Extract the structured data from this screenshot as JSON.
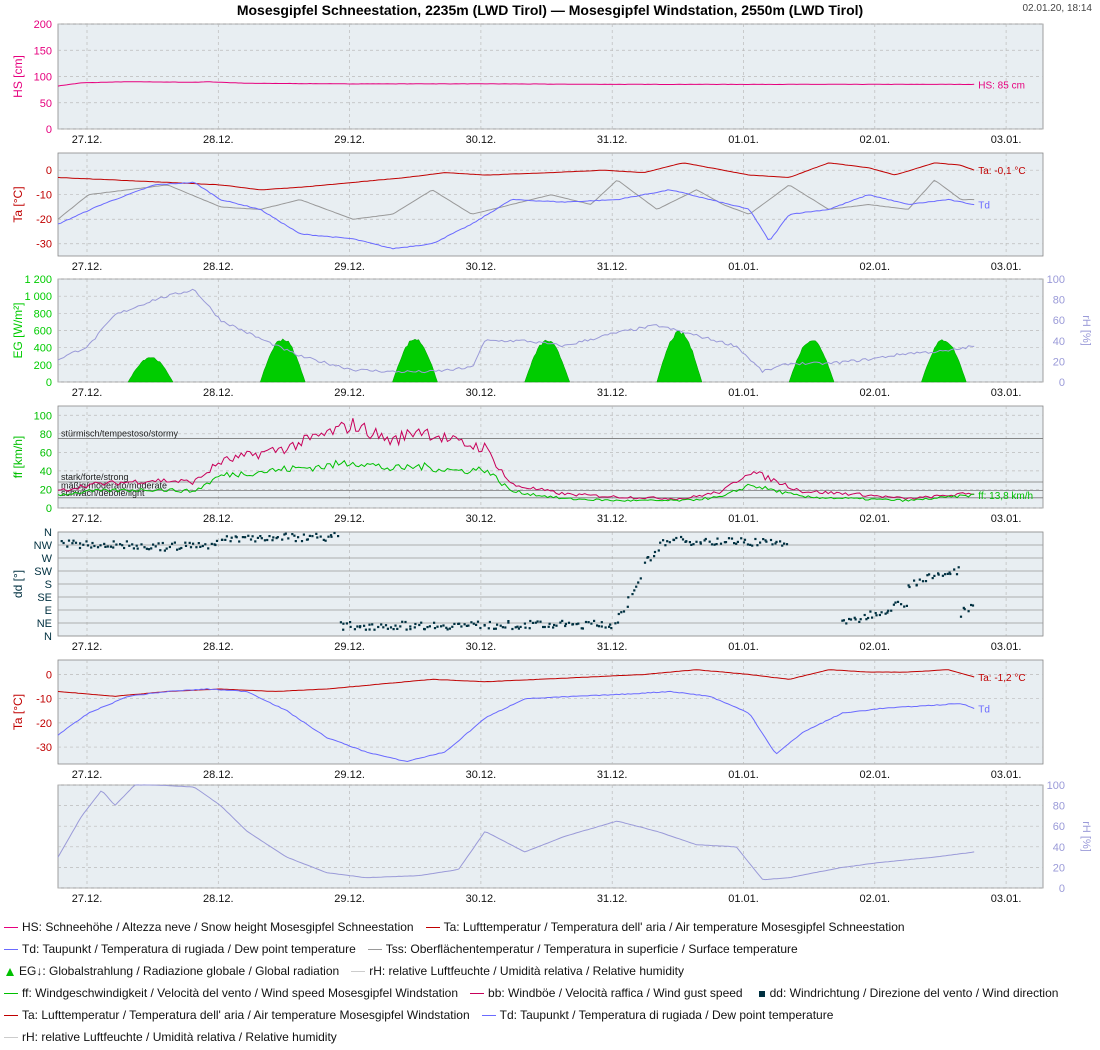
{
  "title": "Mosesgipfel Schneestation, 2235m (LWD Tirol) — Mosesgipfel Windstation, 2550m (LWD Tirol)",
  "timestamp": "02.01.20, 18:14",
  "colors": {
    "hs": "#e6007e",
    "ta": "#c00000",
    "td": "#6a6aff",
    "tss": "#999999",
    "eg": "#00cc00",
    "rh": "#9a9ad8",
    "ff": "#00c000",
    "bb": "#c8005a",
    "dd": "#003040",
    "panel_bg": "#e8eef2",
    "grid": "#bbbbbb"
  },
  "chart_data": [
    {
      "panel": "snow-height",
      "type": "line",
      "ylabel": "HS [cm]",
      "ylim": [
        0,
        200
      ],
      "yticks": [
        0,
        50,
        100,
        150,
        200
      ],
      "x_ticks": [
        "27.12.",
        "28.12.",
        "29.12.",
        "30.12.",
        "31.12.",
        "01.01.",
        "02.01.",
        "03.01."
      ],
      "xlim": [
        -0.23,
        7.22
      ],
      "series": [
        {
          "key": "hs",
          "end_label": "HS: 85 cm",
          "x": [
            -0.23,
            -0.05,
            0.3,
            0.8,
            0.9,
            1.2,
            2.0,
            3.0,
            4.0,
            5.0,
            6.0,
            6.7
          ],
          "y": [
            82,
            88,
            90,
            89,
            90,
            87,
            86,
            86,
            85,
            85,
            85,
            85
          ]
        }
      ]
    },
    {
      "panel": "snow-station-temperatures",
      "type": "line",
      "ylabel": "Ta [°C]",
      "ylim": [
        -35,
        7
      ],
      "yticks": [
        -30,
        -20,
        -10,
        0
      ],
      "x_ticks": [
        "27.12.",
        "28.12.",
        "29.12.",
        "30.12.",
        "31.12.",
        "01.01.",
        "02.01.",
        "03.01."
      ],
      "xlim": [
        -0.23,
        7.22
      ],
      "series": [
        {
          "key": "ta",
          "end_label": "Ta: -0,1 °C",
          "x": [
            -0.23,
            0.2,
            0.6,
            1.0,
            1.3,
            1.6,
            2.0,
            2.4,
            2.7,
            3.0,
            3.5,
            3.9,
            4.2,
            4.5,
            4.7,
            5.0,
            5.3,
            5.6,
            5.9,
            6.1,
            6.4,
            6.6,
            6.7
          ],
          "y": [
            -3,
            -4,
            -5,
            -6,
            -8,
            -7,
            -5,
            -3,
            -1,
            -2,
            -1,
            0,
            -1,
            3,
            1,
            -2,
            -3,
            3,
            1,
            -2,
            3,
            2,
            0
          ]
        },
        {
          "key": "tss",
          "x": [
            -0.23,
            0.0,
            0.3,
            0.6,
            1.0,
            1.3,
            1.6,
            2.0,
            2.3,
            2.6,
            2.9,
            3.2,
            3.5,
            3.8,
            4.0,
            4.3,
            4.6,
            4.8,
            5.0,
            5.3,
            5.6,
            5.9,
            6.2,
            6.4,
            6.6,
            6.7
          ],
          "y": [
            -20,
            -10,
            -8,
            -6,
            -15,
            -16,
            -12,
            -20,
            -18,
            -8,
            -18,
            -14,
            -10,
            -14,
            -4,
            -16,
            -8,
            -14,
            -18,
            -6,
            -16,
            -14,
            -16,
            -4,
            -12,
            -12
          ]
        },
        {
          "key": "td",
          "end_label": "Td",
          "x": [
            -0.23,
            0.1,
            0.5,
            0.8,
            1.0,
            1.3,
            1.6,
            2.0,
            2.3,
            2.6,
            2.9,
            3.2,
            3.6,
            4.0,
            4.4,
            4.7,
            5.0,
            5.15,
            5.3,
            5.6,
            5.9,
            6.2,
            6.5,
            6.7
          ],
          "y": [
            -22,
            -14,
            -6,
            -5,
            -12,
            -16,
            -26,
            -28,
            -32,
            -30,
            -22,
            -12,
            -13,
            -12,
            -8,
            -12,
            -16,
            -29,
            -18,
            -16,
            -10,
            -14,
            -12,
            -14
          ]
        }
      ]
    },
    {
      "panel": "global-radiation-humidity",
      "type": "area",
      "ylabel": "EG [W/m²]",
      "ylim": [
        0,
        1200
      ],
      "yticks": [
        0,
        200,
        400,
        600,
        800,
        1000,
        1200
      ],
      "ytick_labels": [
        "0",
        "200",
        "400",
        "600",
        "800",
        "1 000",
        "1 200"
      ],
      "y2label": "rH [%]",
      "y2lim": [
        0,
        100
      ],
      "y2ticks": [
        0,
        20,
        40,
        60,
        80,
        100
      ],
      "x_ticks": [
        "27.12.",
        "28.12.",
        "29.12.",
        "30.12.",
        "31.12.",
        "01.01.",
        "02.01.",
        "03.01."
      ],
      "xlim": [
        -0.23,
        7.22
      ],
      "series": [
        {
          "key": "eg",
          "type": "area",
          "axis": "left",
          "peaks": [
            {
              "center": 0.47,
              "width": 0.34,
              "value": 300
            },
            {
              "center": 1.47,
              "width": 0.34,
              "value": 520
            },
            {
              "center": 2.47,
              "width": 0.34,
              "value": 520
            },
            {
              "center": 3.47,
              "width": 0.34,
              "value": 500
            },
            {
              "center": 4.47,
              "width": 0.34,
              "value": 600
            },
            {
              "center": 5.47,
              "width": 0.34,
              "value": 510
            },
            {
              "center": 6.47,
              "width": 0.34,
              "value": 510
            }
          ]
        },
        {
          "key": "rh",
          "type": "line",
          "axis": "right",
          "x": [
            -0.23,
            0.0,
            0.2,
            0.5,
            0.8,
            1.0,
            1.3,
            1.6,
            2.0,
            2.3,
            2.6,
            2.9,
            3.0,
            3.3,
            3.6,
            4.0,
            4.3,
            4.6,
            4.9,
            5.1,
            5.3,
            5.6,
            5.9,
            6.2,
            6.5,
            6.7
          ],
          "y": [
            22,
            35,
            65,
            80,
            90,
            60,
            42,
            25,
            12,
            10,
            10,
            14,
            40,
            40,
            35,
            48,
            55,
            45,
            35,
            10,
            18,
            18,
            22,
            28,
            30,
            35
          ]
        }
      ]
    },
    {
      "panel": "wind-speed",
      "type": "line",
      "ylabel": "ff [km/h]",
      "ylim": [
        0,
        110
      ],
      "yticks": [
        0,
        20,
        40,
        60,
        80,
        100
      ],
      "thresholds": [
        {
          "y": 75,
          "label": "stürmisch/tempestoso/stormy"
        },
        {
          "y": 28,
          "label": "stark/forte/strong"
        },
        {
          "y": 19,
          "label": "mäßig/moderato/moderate"
        },
        {
          "y": 11,
          "label": "schwach/debole/light"
        }
      ],
      "x_ticks": [
        "27.12.",
        "28.12.",
        "29.12.",
        "30.12.",
        "31.12.",
        "01.01.",
        "02.01.",
        "03.01."
      ],
      "xlim": [
        -0.23,
        7.22
      ],
      "series": [
        {
          "key": "bb",
          "x": [
            -0.23,
            0.0,
            0.5,
            0.8,
            1.0,
            1.5,
            1.8,
            2.0,
            2.3,
            2.5,
            2.8,
            3.0,
            3.2,
            3.6,
            4.0,
            4.5,
            4.8,
            5.0,
            5.4,
            5.8,
            6.2,
            6.7
          ],
          "y": [
            18,
            25,
            30,
            28,
            50,
            65,
            80,
            90,
            72,
            85,
            70,
            65,
            25,
            15,
            12,
            10,
            18,
            40,
            18,
            15,
            10,
            16
          ]
        },
        {
          "key": "ff",
          "end_label": "ff: 13,8 km/h",
          "x": [
            -0.23,
            0.0,
            0.5,
            0.8,
            1.0,
            1.5,
            1.8,
            2.0,
            2.3,
            2.5,
            2.8,
            3.0,
            3.2,
            3.6,
            4.0,
            4.5,
            4.8,
            5.0,
            5.4,
            5.8,
            6.2,
            6.7
          ],
          "y": [
            14,
            18,
            20,
            18,
            35,
            42,
            45,
            50,
            42,
            45,
            40,
            42,
            18,
            10,
            8,
            8,
            12,
            25,
            12,
            10,
            8,
            14
          ]
        }
      ]
    },
    {
      "panel": "wind-direction",
      "type": "scatter",
      "ylabel": "dd [°]",
      "ylim": [
        0,
        360
      ],
      "ytick_labels": [
        "N",
        "NE",
        "E",
        "SE",
        "S",
        "SW",
        "W",
        "NW",
        "N"
      ],
      "x_ticks": [
        "27.12.",
        "28.12.",
        "29.12.",
        "30.12.",
        "31.12.",
        "01.01.",
        "02.01.",
        "03.01."
      ],
      "xlim": [
        -0.23,
        7.22
      ],
      "series": [
        {
          "key": "dd",
          "segments": [
            {
              "x0": -0.2,
              "x1": 0.4,
              "y0": 320,
              "y1": 315
            },
            {
              "x0": 0.4,
              "x1": 1.0,
              "y0": 305,
              "y1": 318
            },
            {
              "x0": 1.0,
              "x1": 1.9,
              "y0": 338,
              "y1": 345
            },
            {
              "x0": 1.9,
              "x1": 4.0,
              "y0": 35,
              "y1": 40
            },
            {
              "x0": 4.0,
              "x1": 4.2,
              "y0": 60,
              "y1": 200
            },
            {
              "x0": 4.2,
              "x1": 4.4,
              "y0": 250,
              "y1": 345
            },
            {
              "x0": 4.4,
              "x1": 5.3,
              "y0": 330,
              "y1": 325
            },
            {
              "x0": 5.7,
              "x1": 6.2,
              "y0": 40,
              "y1": 120
            },
            {
              "x0": 6.2,
              "x1": 6.6,
              "y0": 180,
              "y1": 230
            },
            {
              "x0": 6.6,
              "x1": 6.7,
              "y0": 80,
              "y1": 120
            }
          ]
        }
      ]
    },
    {
      "panel": "wind-station-temperatures",
      "type": "line",
      "ylabel": "Ta [°C]",
      "ylim": [
        -37,
        6
      ],
      "yticks": [
        -30,
        -20,
        -10,
        0
      ],
      "x_ticks": [
        "27.12.",
        "28.12.",
        "29.12.",
        "30.12.",
        "31.12.",
        "01.01.",
        "02.01.",
        "03.01."
      ],
      "xlim": [
        -0.23,
        7.22
      ],
      "series": [
        {
          "key": "ta",
          "end_label": "Ta: -1,2 °C",
          "x": [
            -0.23,
            0.2,
            0.6,
            1.0,
            1.4,
            1.8,
            2.2,
            2.6,
            3.0,
            3.4,
            3.8,
            4.2,
            4.6,
            5.0,
            5.3,
            5.6,
            5.9,
            6.2,
            6.5,
            6.7
          ],
          "y": [
            -7,
            -9,
            -7,
            -6,
            -7,
            -6,
            -4,
            -2,
            -3,
            -2,
            -1,
            0,
            2,
            0,
            -2,
            2,
            1,
            1,
            2,
            -1
          ]
        },
        {
          "key": "td",
          "end_label": "Td",
          "x": [
            -0.23,
            0.0,
            0.3,
            0.6,
            0.9,
            1.2,
            1.5,
            1.8,
            2.1,
            2.4,
            2.7,
            3.0,
            3.3,
            3.7,
            4.1,
            4.4,
            4.7,
            5.0,
            5.2,
            5.4,
            5.7,
            6.0,
            6.3,
            6.6,
            6.7
          ],
          "y": [
            -25,
            -16,
            -9,
            -7,
            -6,
            -7,
            -15,
            -26,
            -32,
            -36,
            -32,
            -18,
            -10,
            -9,
            -8,
            -7,
            -9,
            -16,
            -33,
            -24,
            -16,
            -14,
            -13,
            -12,
            -14
          ]
        }
      ]
    },
    {
      "panel": "wind-station-humidity",
      "type": "line",
      "y2label": "rH [%]",
      "y2lim": [
        0,
        100
      ],
      "y2ticks": [
        0,
        20,
        40,
        60,
        80,
        100
      ],
      "x_ticks": [
        "27.12.",
        "28.12.",
        "29.12.",
        "30.12.",
        "31.12.",
        "01.01.",
        "02.01.",
        "03.01."
      ],
      "xlim": [
        -0.23,
        7.22
      ],
      "series": [
        {
          "key": "rh",
          "x": [
            -0.23,
            -0.05,
            0.1,
            0.2,
            0.35,
            0.5,
            0.8,
            1.0,
            1.2,
            1.5,
            1.8,
            2.1,
            2.5,
            2.8,
            3.0,
            3.3,
            3.6,
            4.0,
            4.3,
            4.6,
            4.9,
            5.1,
            5.3,
            5.7,
            6.0,
            6.4,
            6.7
          ],
          "y": [
            30,
            70,
            95,
            80,
            100,
            100,
            98,
            80,
            55,
            30,
            15,
            10,
            12,
            18,
            55,
            35,
            50,
            65,
            55,
            42,
            40,
            8,
            10,
            20,
            25,
            30,
            35
          ]
        }
      ]
    }
  ],
  "legend": [
    [
      {
        "key": "hs",
        "marker": "line",
        "text": "HS: Schneehöhe / Altezza neve / Snow height  Mosesgipfel Schneestation"
      },
      {
        "key": "ta",
        "marker": "line",
        "text": "Ta: Lufttemperatur / Temperatura dell' aria / Air temperature  Mosesgipfel Schneestation"
      }
    ],
    [
      {
        "key": "td",
        "marker": "line",
        "text": "Td: Taupunkt / Temperatura di rugiada / Dew point temperature"
      },
      {
        "key": "tss",
        "marker": "line",
        "text": "Tss: Oberflächentemperatur / Temperatura in superficie / Surface temperature"
      }
    ],
    [
      {
        "key": "eg",
        "marker": "area",
        "text": "EG↓: Globalstrahlung / Radiazione globale / Global radiation"
      },
      {
        "key": "rh_light",
        "marker": "line",
        "text": "rH: relative Luftfeuchte / Umidità relativa / Relative humidity"
      }
    ],
    [
      {
        "key": "ff",
        "marker": "line",
        "text": "ff: Windgeschwindigkeit / Velocità del vento / Wind speed  Mosesgipfel Windstation"
      },
      {
        "key": "bb",
        "marker": "line",
        "text": "bb: Windböe / Velocità raffica / Wind gust speed"
      },
      {
        "key": "dd",
        "marker": "square",
        "text": "dd: Windrichtung / Direzione del vento / Wind direction"
      }
    ],
    [
      {
        "key": "ta",
        "marker": "line",
        "text": "Ta: Lufttemperatur / Temperatura dell' aria / Air temperature  Mosesgipfel Windstation"
      },
      {
        "key": "td",
        "marker": "line",
        "text": "Td: Taupunkt / Temperatura di rugiada / Dew point temperature"
      }
    ],
    [
      {
        "key": "rh_light",
        "marker": "line",
        "text": "rH: relative Luftfeuchte / Umidità relativa / Relative humidity"
      }
    ]
  ]
}
